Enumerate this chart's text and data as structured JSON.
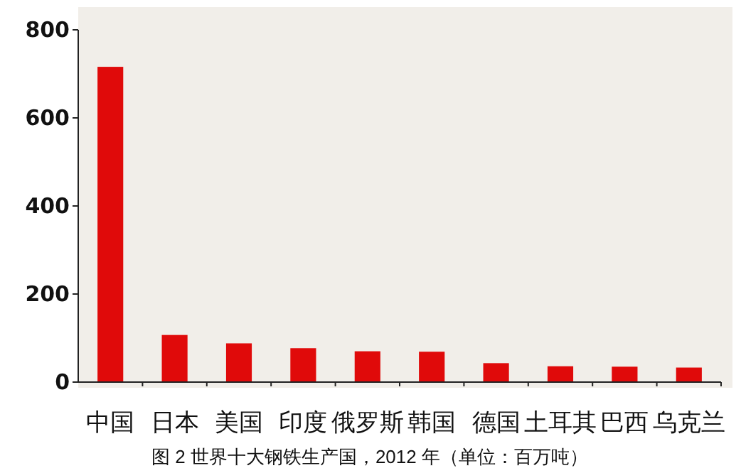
{
  "chart_data": {
    "type": "bar",
    "categories": [
      "中国",
      "日本",
      "美国",
      "印度",
      "俄罗斯",
      "韩国",
      "德国",
      "土耳其",
      "巴西",
      "乌克兰"
    ],
    "values": [
      716,
      107,
      88,
      77,
      70,
      69,
      43,
      36,
      35,
      33
    ],
    "color": "#e00a0a",
    "ylim": [
      0,
      800
    ],
    "yticks": [
      0,
      200,
      400,
      600,
      800
    ],
    "annotations": [
      "图 2 世界十大钢铁生产国，2012 年（单位：百万吨）"
    ]
  }
}
